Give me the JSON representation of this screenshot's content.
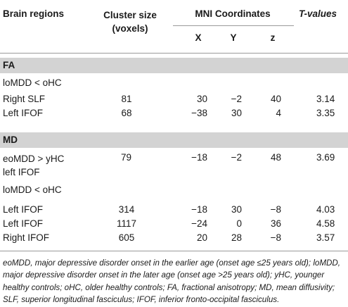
{
  "header": {
    "regions": "Brain regions",
    "cluster_line1": "Cluster size",
    "cluster_line2": "(voxels)",
    "mni": "MNI Coordinates",
    "x": "X",
    "y": "Y",
    "z": "z",
    "tvalues": "T-values"
  },
  "fa": {
    "label": "FA",
    "contrast": "loMDD < oHC",
    "rows": [
      {
        "region": "Right SLF",
        "cluster": "81",
        "x": "30",
        "y": "−2",
        "z": "40",
        "t": "3.14"
      },
      {
        "region": "Left IFOF",
        "cluster": "68",
        "x": "−38",
        "y": "30",
        "z": "4",
        "t": "3.35"
      }
    ]
  },
  "md": {
    "label": "MD",
    "first_row": {
      "region_line1": "eoMDD > yHC",
      "region_line2": "left IFOF",
      "cluster": "79",
      "x": "−18",
      "y": "−2",
      "z": "48",
      "t": "3.69"
    },
    "contrast": "loMDD < oHC",
    "rows": [
      {
        "region": "Left IFOF",
        "cluster": "314",
        "x": "−18",
        "y": "30",
        "z": "−8",
        "t": "4.03"
      },
      {
        "region": "Left IFOF",
        "cluster": "1117",
        "x": "−24",
        "y": "0",
        "z": "36",
        "t": "4.58"
      },
      {
        "region": "Right IFOF",
        "cluster": "605",
        "x": "20",
        "y": "28",
        "z": "−8",
        "t": "3.57"
      }
    ]
  },
  "footnote": "eoMDD, major depressive disorder onset in the earlier age (onset age ≤25 years old); loMDD, major depressive disorder onset in the later age (onset age >25 years old); yHC, younger healthy controls; oHC, older healthy controls; FA, fractional anisotropy; MD, mean diffusivity; SLF, superior longitudinal fasciculus; IFOF, inferior fronto-occipital fasciculus."
}
